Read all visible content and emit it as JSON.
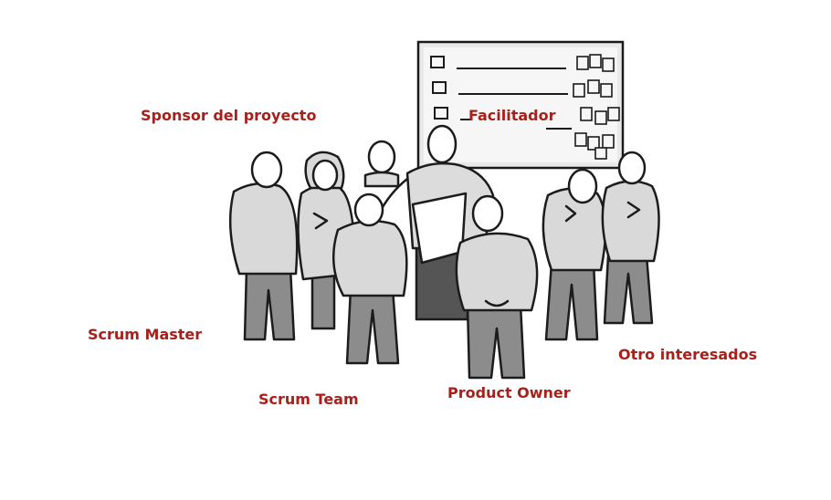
{
  "labels": {
    "sponsor": "Sponsor del proyecto",
    "facilitator": "Facilitador",
    "scrum_master": "Scrum Master",
    "other_stakeholders": "Otro interesados",
    "scrum_team": "Scrum Team",
    "product_owner": "Product Owner"
  },
  "colors": {
    "label": "#a8201a",
    "ink": "#1b1b1b",
    "shirt": "#d9d9d9",
    "pants": "#8c8c8c",
    "board": "#efefef"
  }
}
